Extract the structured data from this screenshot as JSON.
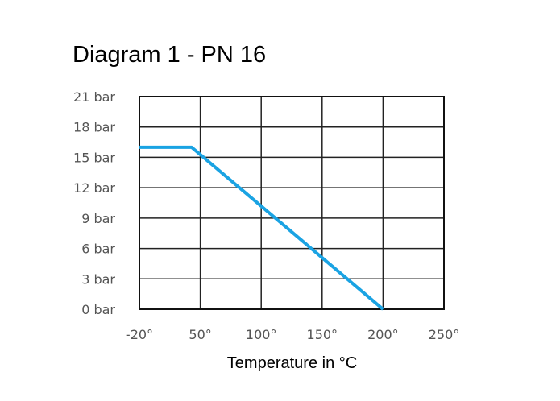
{
  "chart_data": {
    "type": "line",
    "title": "Diagram 1 - PN 16",
    "xlabel": "Temperature in °C",
    "ylabel": "",
    "x_ticks": [
      -20,
      50,
      100,
      150,
      200,
      250
    ],
    "x_tick_labels": [
      "-20°",
      "50°",
      "100°",
      "150°",
      "200°",
      "250°"
    ],
    "y_ticks": [
      0,
      3,
      6,
      9,
      12,
      15,
      18,
      21
    ],
    "y_tick_labels": [
      "0 bar",
      "3 bar",
      "6 bar",
      "9 bar",
      "12 bar",
      "15 bar",
      "18 bar",
      "21 bar"
    ],
    "xlim": [
      -20,
      250
    ],
    "ylim": [
      0,
      21
    ],
    "grid": true,
    "series": [
      {
        "x": [
          -20,
          40,
          200
        ],
        "y": [
          16,
          16,
          0
        ],
        "color": "#1aa3e3"
      }
    ]
  }
}
